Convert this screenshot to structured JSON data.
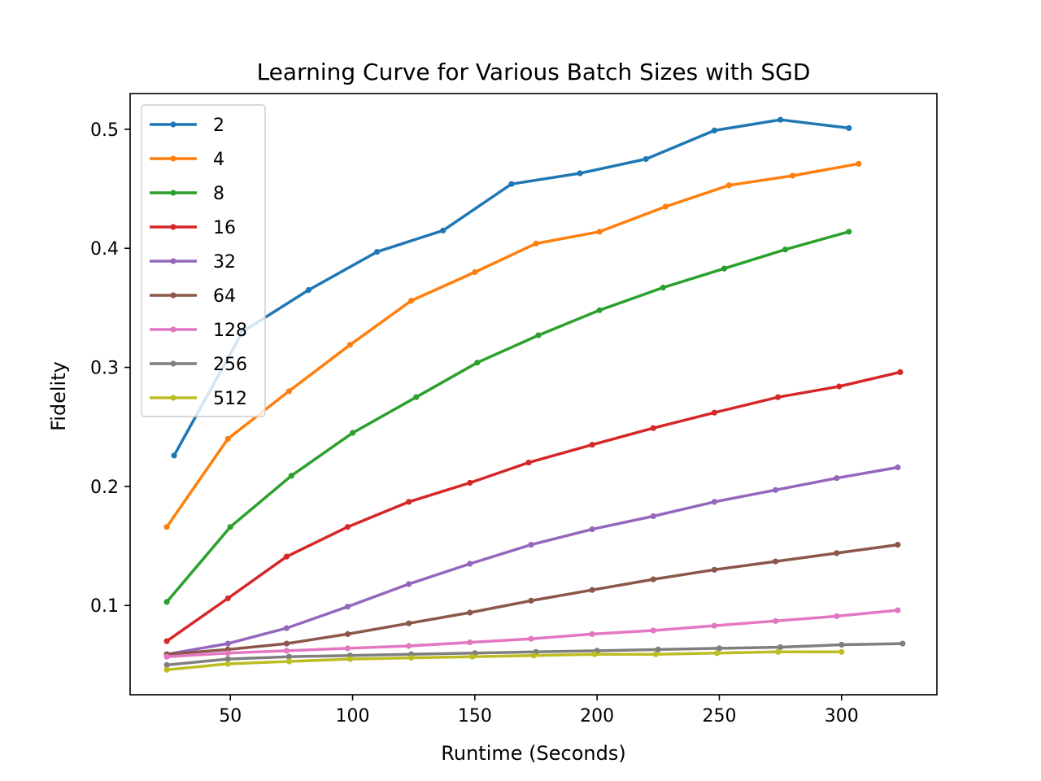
{
  "chart_data": {
    "type": "line",
    "title": "Learning Curve for Various Batch Sizes with SGD",
    "xlabel": "Runtime (Seconds)",
    "ylabel": "Fidelity",
    "xlim": [
      9,
      339
    ],
    "ylim": [
      0.025,
      0.53
    ],
    "xticks": [
      50,
      100,
      150,
      200,
      250,
      300
    ],
    "yticks": [
      0.1,
      0.2,
      0.3,
      0.4,
      0.5
    ],
    "grid": false,
    "legend_position": "top-left",
    "series": [
      {
        "name": "2",
        "color": "#1f77b4",
        "x": [
          27,
          55,
          82,
          110,
          137,
          165,
          193,
          220,
          248,
          275,
          303
        ],
        "y": [
          0.226,
          0.33,
          0.365,
          0.397,
          0.415,
          0.454,
          0.463,
          0.475,
          0.499,
          0.508,
          0.501
        ]
      },
      {
        "name": "4",
        "color": "#ff7f0e",
        "x": [
          24,
          49,
          74,
          99,
          124,
          150,
          175,
          201,
          228,
          254,
          280,
          307
        ],
        "y": [
          0.166,
          0.24,
          0.28,
          0.319,
          0.356,
          0.38,
          0.404,
          0.414,
          0.435,
          0.453,
          0.461,
          0.471
        ]
      },
      {
        "name": "8",
        "color": "#2ca02c",
        "x": [
          24,
          50,
          75,
          100,
          126,
          151,
          176,
          201,
          227,
          252,
          277,
          303
        ],
        "y": [
          0.103,
          0.166,
          0.209,
          0.245,
          0.275,
          0.304,
          0.327,
          0.348,
          0.367,
          0.383,
          0.399,
          0.414
        ]
      },
      {
        "name": "16",
        "color": "#d62728",
        "x": [
          24,
          49,
          73,
          98,
          123,
          148,
          172,
          198,
          223,
          248,
          274,
          299,
          324
        ],
        "y": [
          0.07,
          0.106,
          0.141,
          0.166,
          0.187,
          0.203,
          0.22,
          0.235,
          0.249,
          0.262,
          0.275,
          0.284,
          0.296
        ]
      },
      {
        "name": "32",
        "color": "#9467bd",
        "x": [
          24,
          49,
          73,
          98,
          123,
          148,
          173,
          198,
          223,
          248,
          273,
          298,
          323
        ],
        "y": [
          0.059,
          0.068,
          0.081,
          0.099,
          0.118,
          0.135,
          0.151,
          0.164,
          0.175,
          0.187,
          0.197,
          0.207,
          0.216
        ]
      },
      {
        "name": "64",
        "color": "#8c564b",
        "x": [
          24,
          49,
          73,
          98,
          123,
          148,
          173,
          198,
          223,
          248,
          273,
          298,
          323
        ],
        "y": [
          0.059,
          0.063,
          0.068,
          0.076,
          0.085,
          0.094,
          0.104,
          0.113,
          0.122,
          0.13,
          0.137,
          0.144,
          0.151
        ]
      },
      {
        "name": "128",
        "color": "#e377c2",
        "x": [
          24,
          49,
          73,
          98,
          123,
          148,
          173,
          198,
          223,
          248,
          273,
          298,
          323
        ],
        "y": [
          0.057,
          0.06,
          0.062,
          0.064,
          0.066,
          0.069,
          0.072,
          0.076,
          0.079,
          0.083,
          0.087,
          0.091,
          0.096
        ]
      },
      {
        "name": "256",
        "color": "#7f7f7f",
        "x": [
          24,
          49,
          74,
          99,
          124,
          150,
          175,
          200,
          225,
          250,
          275,
          300,
          325
        ],
        "y": [
          0.05,
          0.055,
          0.057,
          0.058,
          0.059,
          0.06,
          0.061,
          0.062,
          0.063,
          0.064,
          0.065,
          0.067,
          0.068
        ]
      },
      {
        "name": "512",
        "color": "#bcbd22",
        "x": [
          24,
          49,
          74,
          99,
          124,
          149,
          174,
          199,
          224,
          249,
          274,
          300
        ],
        "y": [
          0.046,
          0.051,
          0.053,
          0.055,
          0.056,
          0.057,
          0.058,
          0.059,
          0.059,
          0.06,
          0.061,
          0.061
        ]
      }
    ]
  }
}
